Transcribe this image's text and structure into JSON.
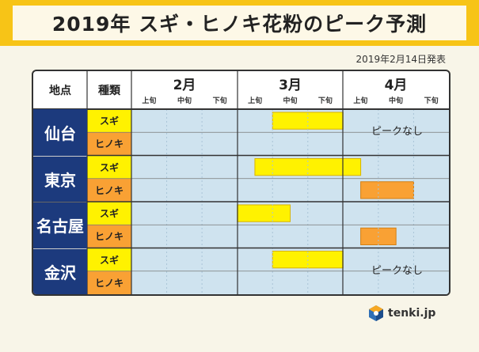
{
  "title": "2019年 スギ・ヒノキ花粉のピーク予測",
  "date_note": "2019年2月14日発表",
  "header": {
    "location": "地点",
    "type": "種類"
  },
  "months": [
    "2月",
    "3月",
    "4月"
  ],
  "periods": [
    "上旬",
    "中旬",
    "下旬"
  ],
  "colors": {
    "sugi": "#fff200",
    "hinoki": "#f9a134",
    "grid_bg": "#cfe3ef",
    "location_bg": "#1c3a7d",
    "header_bg": "#f7c417"
  },
  "chart_data": {
    "type": "gantt",
    "title": "2019年 スギ・ヒノキ花粉のピーク予測",
    "x_unit": "旬 (0 = 2月上旬 start, 9 = 4月下旬 end)",
    "categories_x": [
      "2月上旬",
      "2月中旬",
      "2月下旬",
      "3月上旬",
      "3月中旬",
      "3月下旬",
      "4月上旬",
      "4月中旬",
      "4月下旬"
    ],
    "rows": [
      {
        "location": "仙台",
        "type": "スギ",
        "start": 4.0,
        "end": 6.0,
        "note": ""
      },
      {
        "location": "仙台",
        "type": "ヒノキ",
        "start": null,
        "end": null,
        "note": "ピークなし"
      },
      {
        "location": "東京",
        "type": "スギ",
        "start": 3.5,
        "end": 6.5,
        "note": ""
      },
      {
        "location": "東京",
        "type": "ヒノキ",
        "start": 6.5,
        "end": 8.0,
        "note": ""
      },
      {
        "location": "名古屋",
        "type": "スギ",
        "start": 3.0,
        "end": 4.5,
        "note": ""
      },
      {
        "location": "名古屋",
        "type": "ヒノキ",
        "start": 6.5,
        "end": 7.5,
        "note": ""
      },
      {
        "location": "金沢",
        "type": "スギ",
        "start": 4.0,
        "end": 6.0,
        "note": ""
      },
      {
        "location": "金沢",
        "type": "ヒノキ",
        "start": null,
        "end": null,
        "note": "ピークなし"
      }
    ]
  },
  "logo": {
    "text": "tenki.jp",
    "icon": "tenki-logo-icon"
  }
}
